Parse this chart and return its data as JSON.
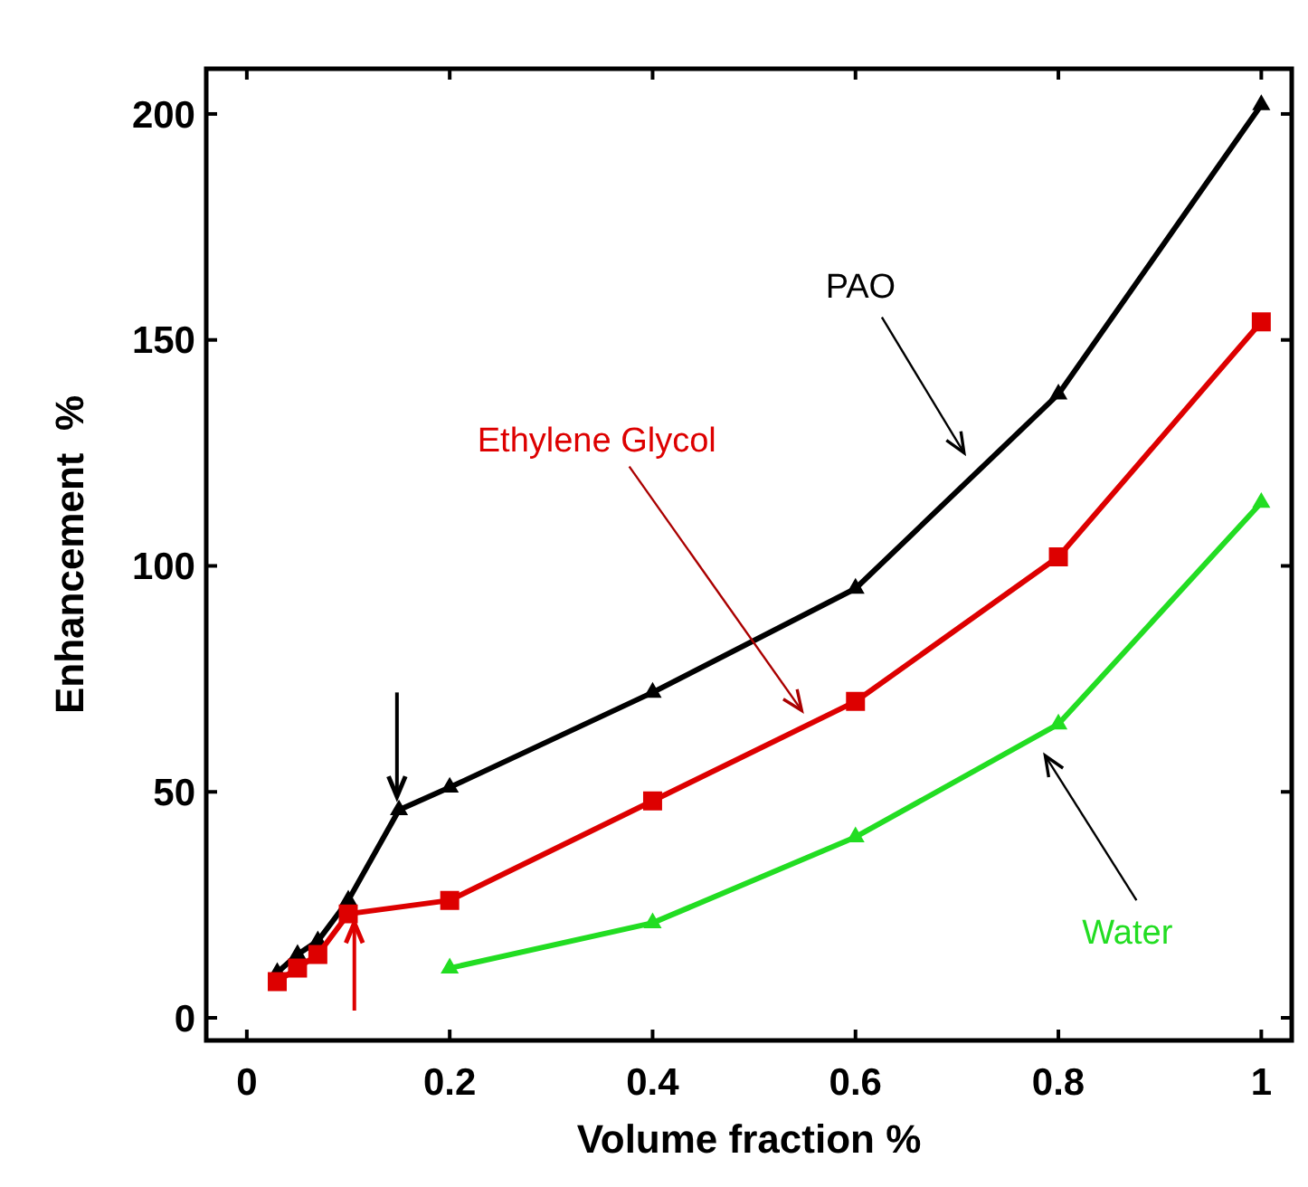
{
  "chart_data": {
    "type": "line",
    "xlabel": "Volume fraction %",
    "ylabel": "Enhancement  %",
    "xlim": [
      -0.04,
      1.03
    ],
    "xticks": [
      0,
      0.2,
      0.4,
      0.6,
      0.8,
      1
    ],
    "ylim": [
      -5,
      210
    ],
    "yticks": [
      0,
      50,
      100,
      150,
      200
    ],
    "grid": false,
    "series": [
      {
        "name": "PAO",
        "color": "#000000",
        "marker": "triangle",
        "x": [
          0.03,
          0.05,
          0.07,
          0.1,
          0.15,
          0.2,
          0.4,
          0.6,
          0.8,
          1
        ],
        "values": [
          10,
          14,
          17,
          26,
          46,
          51,
          72,
          95,
          138,
          202
        ]
      },
      {
        "name": "Ethylene Glycol",
        "color": "#dd0000",
        "marker": "square",
        "x": [
          0.03,
          0.05,
          0.07,
          0.1,
          0.2,
          0.4,
          0.6,
          0.8,
          1
        ],
        "values": [
          8,
          11,
          14,
          23,
          26,
          48,
          70,
          102,
          154
        ]
      },
      {
        "name": "Water",
        "color": "#22dd22",
        "marker": "triangle",
        "x": [
          0.2,
          0.4,
          0.6,
          0.8,
          1
        ],
        "values": [
          11,
          21,
          40,
          65,
          114
        ]
      }
    ]
  }
}
